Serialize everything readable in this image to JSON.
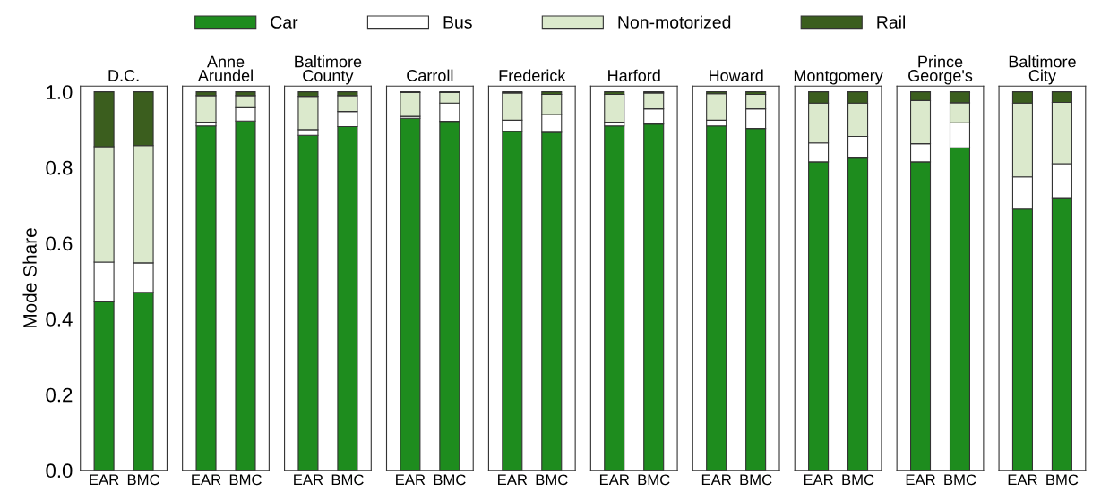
{
  "chart_data": [
    {
      "type": "bar",
      "stacked": true,
      "title": "D.C.",
      "ylabel": "Mode Share",
      "categories": [
        "EAR",
        "BMC"
      ],
      "ylim": [
        0,
        1.015
      ],
      "yticks": [
        {
          "value": 0,
          "label": "0.0"
        },
        {
          "value": 0.2,
          "label": "0.2"
        },
        {
          "value": 0.4,
          "label": "0.4"
        },
        {
          "value": 0.6,
          "label": "0.6"
        },
        {
          "value": 0.8,
          "label": "0.8"
        },
        {
          "value": 1,
          "label": "1.0"
        }
      ],
      "legend": "top",
      "grid": false,
      "series": [
        {
          "name": "Car",
          "color": "#1e8c1e",
          "values": [
            0.445,
            0.47
          ]
        },
        {
          "name": "Bus",
          "color": "#ffffff",
          "values": [
            0.105,
            0.078
          ]
        },
        {
          "name": "Non-motorized",
          "color": "#dbe9cc",
          "values": [
            0.305,
            0.31
          ]
        },
        {
          "name": "Rail",
          "color": "#3b5e1e",
          "values": [
            0.145,
            0.142
          ]
        }
      ]
    },
    {
      "type": "bar",
      "stacked": true,
      "title": "Anne\nArundel",
      "categories": [
        "EAR",
        "BMC"
      ],
      "ylim": [
        0,
        1.015
      ],
      "tick_labels": "x",
      "series": [
        {
          "color": "#1e8c1e",
          "values": [
            0.91,
            0.923
          ]
        },
        {
          "color": "#ffffff",
          "values": [
            0.01,
            0.035
          ]
        },
        {
          "color": "#dbe9cc",
          "values": [
            0.07,
            0.032
          ]
        },
        {
          "color": "#3b5e1e",
          "values": [
            0.01,
            0.01
          ]
        }
      ]
    },
    {
      "type": "bar",
      "stacked": true,
      "title": "Baltimore\nCounty",
      "categories": [
        "EAR",
        "BMC"
      ],
      "ylim": [
        0,
        1.015
      ],
      "tick_labels": "x",
      "series": [
        {
          "color": "#1e8c1e",
          "values": [
            0.885,
            0.908
          ]
        },
        {
          "color": "#ffffff",
          "values": [
            0.015,
            0.04
          ]
        },
        {
          "color": "#dbe9cc",
          "values": [
            0.088,
            0.042
          ]
        },
        {
          "color": "#3b5e1e",
          "values": [
            0.012,
            0.01
          ]
        }
      ]
    },
    {
      "type": "bar",
      "stacked": true,
      "title": "Carroll",
      "categories": [
        "EAR",
        "BMC"
      ],
      "ylim": [
        0,
        1.015
      ],
      "tick_labels": "x",
      "series": [
        {
          "color": "#1e8c1e",
          "values": [
            0.93,
            0.922
          ]
        },
        {
          "color": "#ffffff",
          "values": [
            0.005,
            0.048
          ]
        },
        {
          "color": "#dbe9cc",
          "values": [
            0.063,
            0.028
          ]
        },
        {
          "color": "#3b5e1e",
          "values": [
            0.002,
            0.002
          ]
        }
      ]
    },
    {
      "type": "bar",
      "stacked": true,
      "title": "Frederick",
      "categories": [
        "EAR",
        "BMC"
      ],
      "ylim": [
        0,
        1.015
      ],
      "tick_labels": "x",
      "series": [
        {
          "color": "#1e8c1e",
          "values": [
            0.895,
            0.893
          ]
        },
        {
          "color": "#ffffff",
          "values": [
            0.03,
            0.047
          ]
        },
        {
          "color": "#dbe9cc",
          "values": [
            0.072,
            0.053
          ]
        },
        {
          "color": "#3b5e1e",
          "values": [
            0.003,
            0.007
          ]
        }
      ]
    },
    {
      "type": "bar",
      "stacked": true,
      "title": "Harford",
      "categories": [
        "EAR",
        "BMC"
      ],
      "ylim": [
        0,
        1.015
      ],
      "tick_labels": "x",
      "series": [
        {
          "color": "#1e8c1e",
          "values": [
            0.91,
            0.915
          ]
        },
        {
          "color": "#ffffff",
          "values": [
            0.01,
            0.04
          ]
        },
        {
          "color": "#dbe9cc",
          "values": [
            0.073,
            0.042
          ]
        },
        {
          "color": "#3b5e1e",
          "values": [
            0.007,
            0.003
          ]
        }
      ]
    },
    {
      "type": "bar",
      "stacked": true,
      "title": "Howard",
      "categories": [
        "EAR",
        "BMC"
      ],
      "ylim": [
        0,
        1.015
      ],
      "tick_labels": "x",
      "series": [
        {
          "color": "#1e8c1e",
          "values": [
            0.91,
            0.903
          ]
        },
        {
          "color": "#ffffff",
          "values": [
            0.015,
            0.052
          ]
        },
        {
          "color": "#dbe9cc",
          "values": [
            0.07,
            0.038
          ]
        },
        {
          "color": "#3b5e1e",
          "values": [
            0.005,
            0.007
          ]
        }
      ]
    },
    {
      "type": "bar",
      "stacked": true,
      "title": "Montgomery",
      "categories": [
        "EAR",
        "BMC"
      ],
      "ylim": [
        0,
        1.015
      ],
      "tick_labels": "x",
      "series": [
        {
          "color": "#1e8c1e",
          "values": [
            0.815,
            0.825
          ]
        },
        {
          "color": "#ffffff",
          "values": [
            0.05,
            0.057
          ]
        },
        {
          "color": "#dbe9cc",
          "values": [
            0.105,
            0.088
          ]
        },
        {
          "color": "#3b5e1e",
          "values": [
            0.03,
            0.03
          ]
        }
      ]
    },
    {
      "type": "bar",
      "stacked": true,
      "title": "Prince\nGeorge's",
      "categories": [
        "EAR",
        "BMC"
      ],
      "ylim": [
        0,
        1.015
      ],
      "tick_labels": "x",
      "series": [
        {
          "color": "#1e8c1e",
          "values": [
            0.815,
            0.852
          ]
        },
        {
          "color": "#ffffff",
          "values": [
            0.048,
            0.066
          ]
        },
        {
          "color": "#dbe9cc",
          "values": [
            0.114,
            0.053
          ]
        },
        {
          "color": "#3b5e1e",
          "values": [
            0.023,
            0.029
          ]
        }
      ]
    },
    {
      "type": "bar",
      "stacked": true,
      "title": "Baltimore\nCity",
      "categories": [
        "EAR",
        "BMC"
      ],
      "ylim": [
        0,
        1.015
      ],
      "tick_labels": "x",
      "series": [
        {
          "color": "#1e8c1e",
          "values": [
            0.69,
            0.72
          ]
        },
        {
          "color": "#ffffff",
          "values": [
            0.085,
            0.09
          ]
        },
        {
          "color": "#dbe9cc",
          "values": [
            0.195,
            0.162
          ]
        },
        {
          "color": "#3b5e1e",
          "values": [
            0.03,
            0.028
          ]
        }
      ]
    }
  ]
}
